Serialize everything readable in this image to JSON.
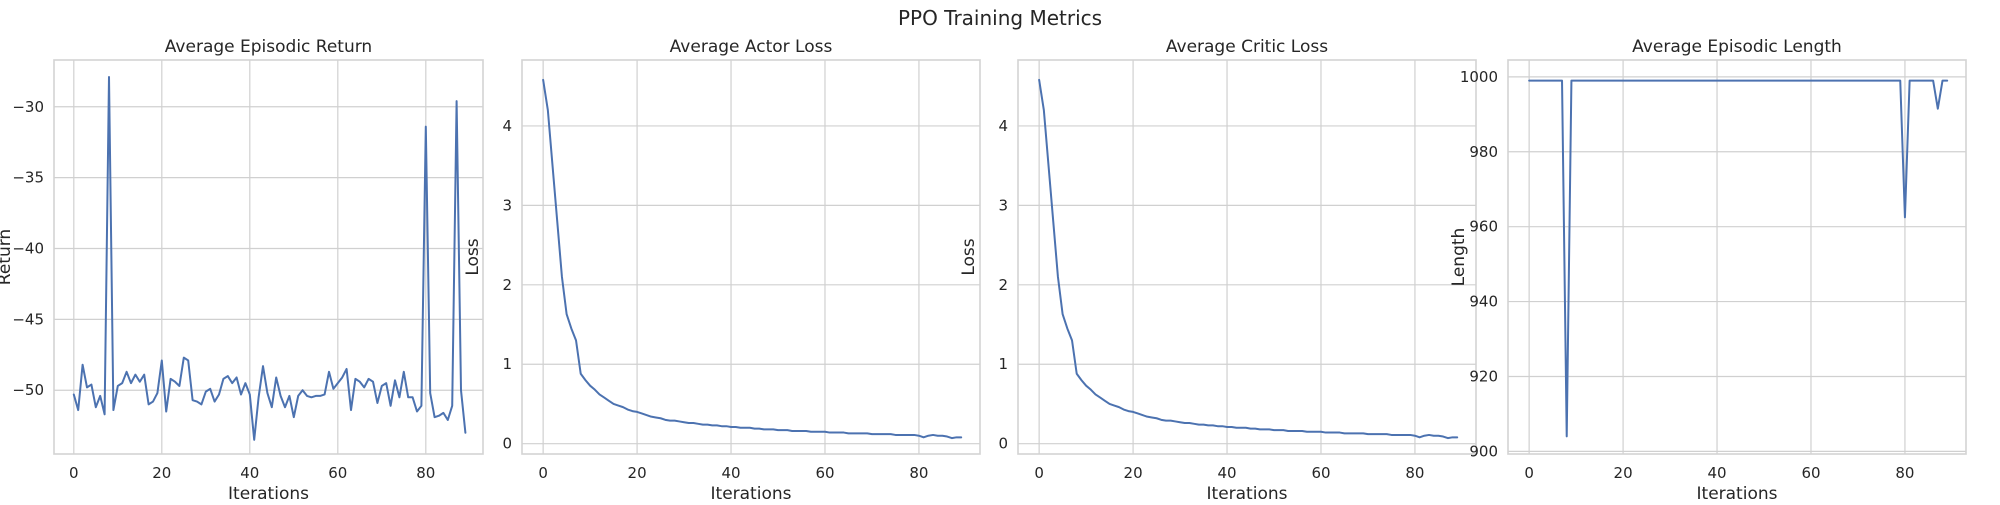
{
  "figure": {
    "suptitle": "PPO Training Metrics",
    "line_color": "#4c72b0"
  },
  "chart_data": [
    {
      "type": "line",
      "title": "Average Episodic Return",
      "xlabel": "Iterations",
      "ylabel": "Return",
      "xlim": [
        -4.5,
        93
      ],
      "ylim": [
        -54.5,
        -26.7
      ],
      "xticks": [
        0,
        20,
        40,
        60,
        80
      ],
      "yticks": [
        -50,
        -45,
        -40,
        -35,
        -30
      ],
      "ytick_labels": [
        "−50",
        "−45",
        "−40",
        "−35",
        "−30"
      ],
      "grid": true,
      "x_start": 0,
      "values": [
        -50.3,
        -51.4,
        -48.2,
        -49.8,
        -49.6,
        -51.2,
        -50.4,
        -51.7,
        -27.9,
        -51.4,
        -49.7,
        -49.5,
        -48.7,
        -49.5,
        -48.9,
        -49.4,
        -48.9,
        -51.0,
        -50.8,
        -50.2,
        -47.9,
        -51.5,
        -49.2,
        -49.4,
        -49.7,
        -47.7,
        -47.9,
        -50.7,
        -50.8,
        -51.0,
        -50.1,
        -49.9,
        -50.8,
        -50.3,
        -49.2,
        -49.0,
        -49.5,
        -49.1,
        -50.3,
        -49.5,
        -50.3,
        -53.5,
        -50.5,
        -48.3,
        -50.2,
        -51.2,
        -49.1,
        -50.4,
        -51.2,
        -50.4,
        -51.9,
        -50.4,
        -50.0,
        -50.4,
        -50.5,
        -50.4,
        -50.4,
        -50.3,
        -48.7,
        -49.9,
        -49.5,
        -49.1,
        -48.5,
        -51.4,
        -49.2,
        -49.4,
        -49.8,
        -49.2,
        -49.4,
        -50.9,
        -49.7,
        -49.5,
        -51.1,
        -49.3,
        -50.5,
        -48.7,
        -50.5,
        -50.5,
        -51.5,
        -51.1,
        -31.4,
        -50.2,
        -51.9,
        -51.8,
        -51.6,
        -52.1,
        -51.1,
        -29.6,
        -50.0,
        -53.0
      ]
    },
    {
      "type": "line",
      "title": "Average Actor Loss",
      "xlabel": "Iterations",
      "ylabel": "Loss",
      "xlim": [
        -4.5,
        93
      ],
      "ylim": [
        -0.13,
        4.83
      ],
      "xticks": [
        0,
        20,
        40,
        60,
        80
      ],
      "yticks": [
        0,
        1,
        2,
        3,
        4
      ],
      "grid": true,
      "x_start": 0,
      "values": [
        4.58,
        4.2,
        3.5,
        2.8,
        2.1,
        1.63,
        1.45,
        1.3,
        0.88,
        0.8,
        0.73,
        0.68,
        0.62,
        0.58,
        0.54,
        0.5,
        0.48,
        0.46,
        0.43,
        0.41,
        0.4,
        0.38,
        0.36,
        0.34,
        0.33,
        0.32,
        0.3,
        0.29,
        0.29,
        0.28,
        0.27,
        0.26,
        0.26,
        0.25,
        0.24,
        0.24,
        0.23,
        0.23,
        0.22,
        0.22,
        0.21,
        0.21,
        0.2,
        0.2,
        0.2,
        0.19,
        0.19,
        0.18,
        0.18,
        0.18,
        0.17,
        0.17,
        0.17,
        0.16,
        0.16,
        0.16,
        0.16,
        0.15,
        0.15,
        0.15,
        0.15,
        0.14,
        0.14,
        0.14,
        0.14,
        0.13,
        0.13,
        0.13,
        0.13,
        0.13,
        0.12,
        0.12,
        0.12,
        0.12,
        0.12,
        0.11,
        0.11,
        0.11,
        0.11,
        0.11,
        0.1,
        0.08,
        0.1,
        0.11,
        0.1,
        0.1,
        0.09,
        0.07,
        0.08,
        0.08
      ]
    },
    {
      "type": "line",
      "title": "Average Critic Loss",
      "xlabel": "Iterations",
      "ylabel": "Loss",
      "xlim": [
        -4.5,
        93
      ],
      "ylim": [
        -0.13,
        4.83
      ],
      "xticks": [
        0,
        20,
        40,
        60,
        80
      ],
      "yticks": [
        0,
        1,
        2,
        3,
        4
      ],
      "grid": true,
      "x_start": 0,
      "values": [
        4.58,
        4.2,
        3.5,
        2.8,
        2.1,
        1.63,
        1.45,
        1.3,
        0.88,
        0.8,
        0.73,
        0.68,
        0.62,
        0.58,
        0.54,
        0.5,
        0.48,
        0.46,
        0.43,
        0.41,
        0.4,
        0.38,
        0.36,
        0.34,
        0.33,
        0.32,
        0.3,
        0.29,
        0.29,
        0.28,
        0.27,
        0.26,
        0.26,
        0.25,
        0.24,
        0.24,
        0.23,
        0.23,
        0.22,
        0.22,
        0.21,
        0.21,
        0.2,
        0.2,
        0.2,
        0.19,
        0.19,
        0.18,
        0.18,
        0.18,
        0.17,
        0.17,
        0.17,
        0.16,
        0.16,
        0.16,
        0.16,
        0.15,
        0.15,
        0.15,
        0.15,
        0.14,
        0.14,
        0.14,
        0.14,
        0.13,
        0.13,
        0.13,
        0.13,
        0.13,
        0.12,
        0.12,
        0.12,
        0.12,
        0.12,
        0.11,
        0.11,
        0.11,
        0.11,
        0.11,
        0.1,
        0.08,
        0.1,
        0.11,
        0.1,
        0.1,
        0.09,
        0.07,
        0.08,
        0.08
      ]
    },
    {
      "type": "line",
      "title": "Average Episodic Length",
      "xlabel": "Iterations",
      "ylabel": "Length",
      "xlim": [
        -4.5,
        93
      ],
      "ylim": [
        899.3,
        1004.5
      ],
      "xticks": [
        0,
        20,
        40,
        60,
        80
      ],
      "yticks": [
        900,
        920,
        940,
        960,
        980,
        1000
      ],
      "grid": true,
      "x_start": 0,
      "values": [
        999,
        999,
        999,
        999,
        999,
        999,
        999,
        999,
        904,
        999,
        999,
        999,
        999,
        999,
        999,
        999,
        999,
        999,
        999,
        999,
        999,
        999,
        999,
        999,
        999,
        999,
        999,
        999,
        999,
        999,
        999,
        999,
        999,
        999,
        999,
        999,
        999,
        999,
        999,
        999,
        999,
        999,
        999,
        999,
        999,
        999,
        999,
        999,
        999,
        999,
        999,
        999,
        999,
        999,
        999,
        999,
        999,
        999,
        999,
        999,
        999,
        999,
        999,
        999,
        999,
        999,
        999,
        999,
        999,
        999,
        999,
        999,
        999,
        999,
        999,
        999,
        999,
        999,
        999,
        999,
        962.5,
        999,
        999,
        999,
        999,
        999,
        999,
        991.5,
        999,
        999
      ]
    }
  ]
}
